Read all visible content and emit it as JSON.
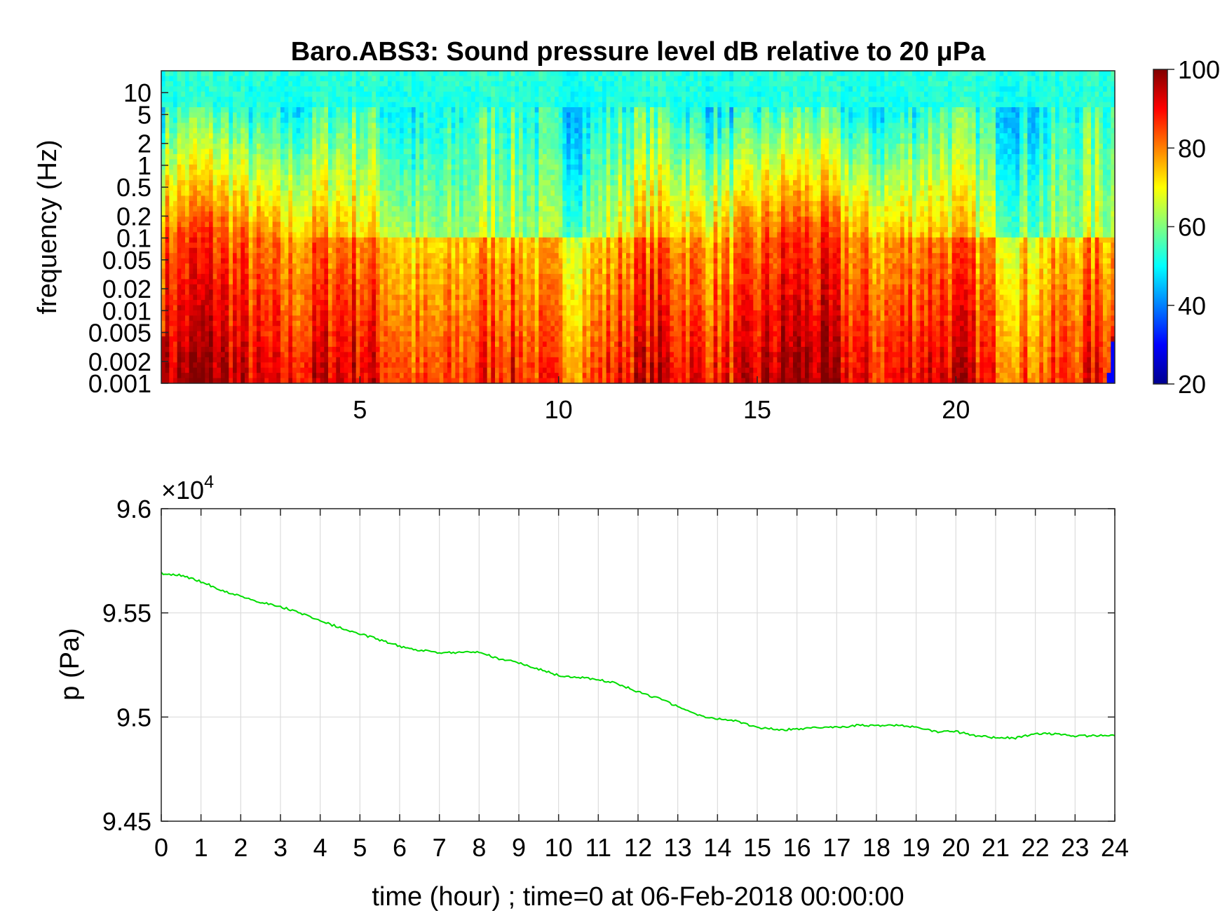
{
  "chart_data": [
    {
      "type": "heatmap",
      "title": "Baro.ABS3: Sound pressure level dB relative to 20 μPa",
      "ylabel": "frequency (Hz)",
      "xlabel": "",
      "x_ticks": [
        "5",
        "10",
        "15",
        "20"
      ],
      "y_ticks": [
        "10",
        "5",
        "2",
        "1",
        "0.5",
        "0.2",
        "0.1",
        "0.05",
        "0.02",
        "0.01",
        "0.005",
        "0.002",
        "0.001"
      ],
      "colorbar": {
        "ticks": [
          "100",
          "80",
          "60",
          "40",
          "20"
        ],
        "min": 20,
        "max": 100,
        "colormap": "jet"
      },
      "xlim": [
        0,
        24
      ],
      "ylim_hz": [
        0.001,
        20
      ],
      "y_scale": "log"
    },
    {
      "type": "line",
      "title": "",
      "xlabel": "time (hour) ; time=0 at 06-Feb-2018 00:00:00",
      "ylabel": "p (Pa)",
      "y_multiplier": "×10",
      "y_multiplier_exp": "4",
      "xlim": [
        0,
        24
      ],
      "ylim": [
        9.45,
        9.6
      ],
      "x_ticks": [
        "0",
        "1",
        "2",
        "3",
        "4",
        "5",
        "6",
        "7",
        "8",
        "9",
        "10",
        "11",
        "12",
        "13",
        "14",
        "15",
        "16",
        "17",
        "18",
        "19",
        "20",
        "21",
        "22",
        "23",
        "24"
      ],
      "y_ticks": [
        "9.6",
        "9.55",
        "9.5",
        "9.45"
      ],
      "grid": true,
      "line_color": "#00dd00",
      "series": [
        {
          "x": [
            0,
            0.5,
            1,
            1.5,
            2,
            2.5,
            3,
            3.5,
            4,
            4.5,
            5,
            5.5,
            6,
            6.5,
            7,
            7.5,
            8,
            8.5,
            9,
            9.5,
            10,
            10.5,
            11,
            11.5,
            12,
            12.5,
            13,
            13.5,
            14,
            14.5,
            15,
            15.5,
            16,
            16.5,
            17,
            17.5,
            18,
            18.5,
            19,
            19.5,
            20,
            20.5,
            21,
            21.5,
            22,
            22.5,
            23,
            23.5,
            24
          ],
          "y": [
            9.569,
            9.568,
            9.565,
            9.561,
            9.558,
            9.555,
            9.553,
            9.55,
            9.546,
            9.543,
            9.54,
            9.537,
            9.534,
            9.532,
            9.531,
            9.531,
            9.531,
            9.528,
            9.526,
            9.523,
            9.52,
            9.519,
            9.518,
            9.516,
            9.512,
            9.509,
            9.505,
            9.501,
            9.499,
            9.498,
            9.495,
            9.494,
            9.494,
            9.495,
            9.495,
            9.496,
            9.496,
            9.496,
            9.495,
            9.493,
            9.493,
            9.491,
            9.49,
            9.49,
            9.492,
            9.492,
            9.491,
            9.491,
            9.491
          ]
        }
      ]
    }
  ]
}
